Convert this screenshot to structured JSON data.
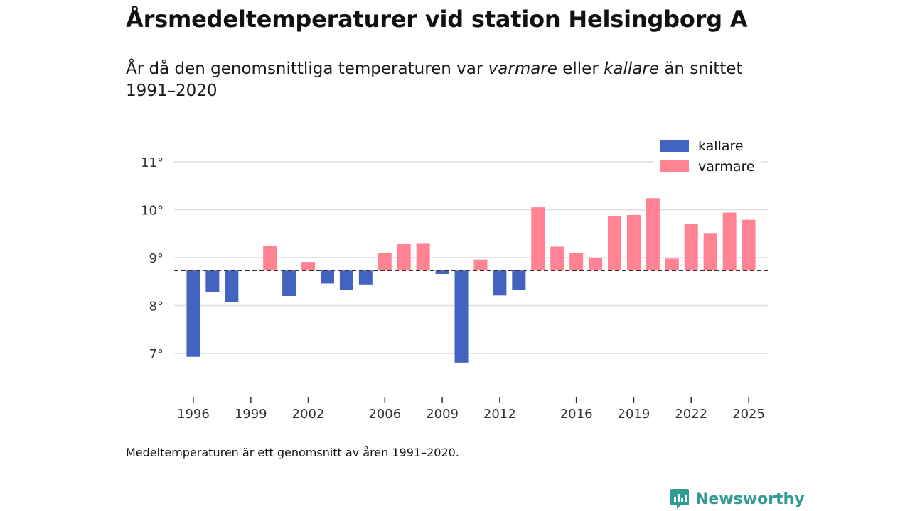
{
  "header": {
    "title": "Årsmedeltemperaturer vid station Helsingborg A",
    "subtitle_prefix": "År då den genomsnittliga temperaturen var ",
    "subtitle_warm": "varmare",
    "subtitle_middle": " eller ",
    "subtitle_cold": "kallare",
    "subtitle_suffix": " än snittet 1991–2020"
  },
  "footnote": "Medeltemperaturen är ett genomsnitt av åren 1991–2020.",
  "brand": {
    "name": "Newsworthy",
    "color": "#2f9b93"
  },
  "chart_data": {
    "type": "bar",
    "title": "Årsmedeltemperaturer vid station Helsingborg A",
    "xlabel": "",
    "ylabel": "",
    "baseline": 8.73,
    "ylim": [
      6.5,
      11.3
    ],
    "yticks": [
      7,
      8,
      9,
      10,
      11
    ],
    "ytick_labels": [
      "7°",
      "8°",
      "9°",
      "10°",
      "11°"
    ],
    "xlim": [
      1995.0,
      2026.0
    ],
    "xticks": [
      1996,
      1999,
      2002,
      2006,
      2009,
      2012,
      2016,
      2019,
      2022,
      2025
    ],
    "legend": {
      "position": "top-right",
      "entries": [
        {
          "label": "kallare",
          "color": "#4263c0"
        },
        {
          "label": "varmare",
          "color": "#ff8392"
        }
      ]
    },
    "grid": true,
    "bars": [
      {
        "year": 1996,
        "value": 6.93
      },
      {
        "year": 1997,
        "value": 8.28
      },
      {
        "year": 1998,
        "value": 8.08
      },
      {
        "year": 2000,
        "value": 9.25
      },
      {
        "year": 2001,
        "value": 8.2
      },
      {
        "year": 2002,
        "value": 8.91
      },
      {
        "year": 2003,
        "value": 8.46
      },
      {
        "year": 2004,
        "value": 8.32
      },
      {
        "year": 2005,
        "value": 8.44
      },
      {
        "year": 2006,
        "value": 9.09
      },
      {
        "year": 2007,
        "value": 9.28
      },
      {
        "year": 2008,
        "value": 9.29
      },
      {
        "year": 2009,
        "value": 8.66
      },
      {
        "year": 2010,
        "value": 6.81
      },
      {
        "year": 2011,
        "value": 8.96
      },
      {
        "year": 2012,
        "value": 8.21
      },
      {
        "year": 2013,
        "value": 8.33
      },
      {
        "year": 2014,
        "value": 10.05
      },
      {
        "year": 2015,
        "value": 9.23
      },
      {
        "year": 2016,
        "value": 9.09
      },
      {
        "year": 2017,
        "value": 8.99
      },
      {
        "year": 2018,
        "value": 9.87
      },
      {
        "year": 2019,
        "value": 9.89
      },
      {
        "year": 2020,
        "value": 10.24
      },
      {
        "year": 2021,
        "value": 8.98
      },
      {
        "year": 2022,
        "value": 9.7
      },
      {
        "year": 2023,
        "value": 9.5
      },
      {
        "year": 2024,
        "value": 9.94
      },
      {
        "year": 2025,
        "value": 9.79
      }
    ]
  }
}
